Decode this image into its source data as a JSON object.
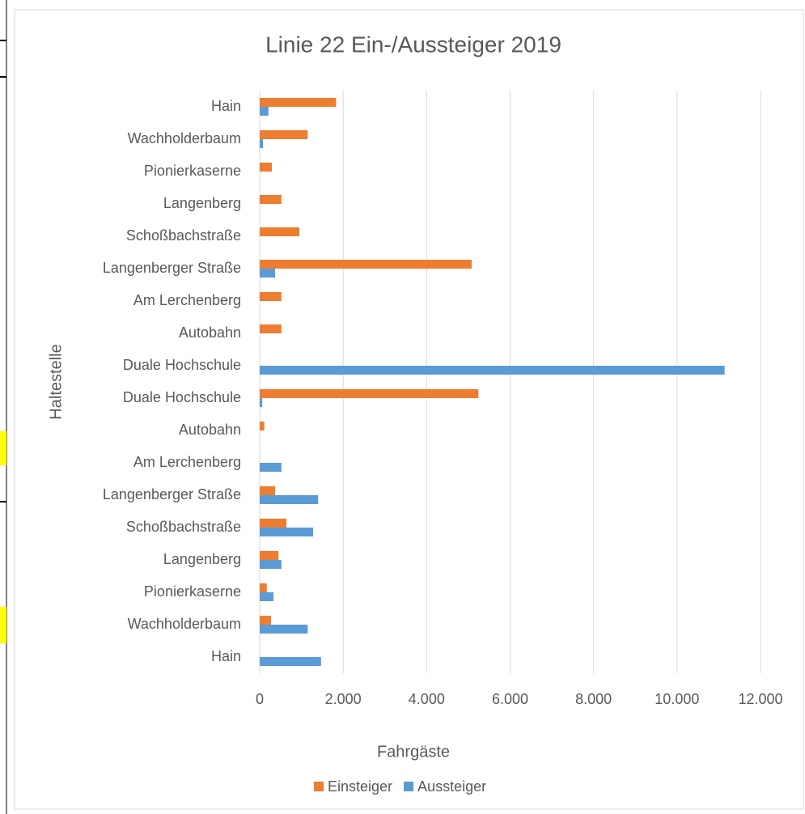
{
  "chart_data": {
    "type": "barh",
    "title": "Linie 22 Ein-/Aussteiger 2019",
    "xlabel": "Fahrgäste",
    "ylabel": "Haltestelle",
    "categories": [
      "Hain",
      "Wachholderbaum",
      "Pionierkaserne",
      "Langenberg",
      "Schoßbachstraße",
      "Langenberger Straße",
      "Am Lerchenberg",
      "Autobahn",
      "Duale Hochschule",
      "Duale Hochschule",
      "Autobahn",
      "Am Lerchenberg",
      "Langenberger Straße",
      "Schoßbachstraße",
      "Langenberg",
      "Pionierkaserne",
      "Wachholderbaum",
      "Hain"
    ],
    "series": [
      {
        "name": "Einsteiger",
        "color": "#ed7d31",
        "values": [
          1830,
          1150,
          290,
          520,
          950,
          5080,
          520,
          520,
          0,
          5240,
          110,
          0,
          370,
          640,
          450,
          170,
          270,
          0
        ]
      },
      {
        "name": "Aussteiger",
        "color": "#5b9bd5",
        "values": [
          210,
          80,
          0,
          0,
          0,
          370,
          0,
          0,
          11140,
          60,
          0,
          520,
          1400,
          1280,
          520,
          330,
          1150,
          1470
        ]
      }
    ],
    "xlim": [
      0,
      12000
    ],
    "xticks": [
      0,
      {
        "value": 2000,
        "label": "2.000"
      },
      {
        "value": 4000,
        "label": "4.000"
      },
      {
        "value": 6000,
        "label": "6.000"
      },
      {
        "value": 8000,
        "label": "8.000"
      },
      {
        "value": 10000,
        "label": "10.000"
      },
      {
        "value": 12000,
        "label": "12.000"
      }
    ],
    "grid": true,
    "legend": "bottom"
  }
}
